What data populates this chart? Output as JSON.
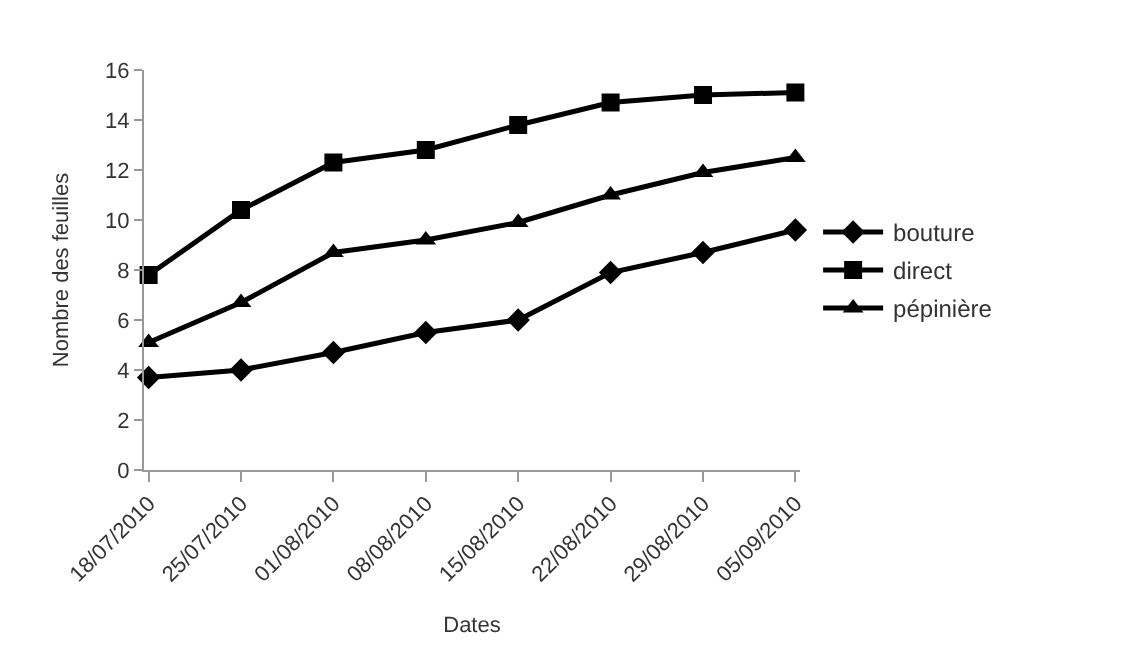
{
  "chart_data": {
    "type": "line",
    "xlabel": "Dates",
    "ylabel": "Nombre des feuilles",
    "categories": [
      "18/07/2010",
      "25/07/2010",
      "01/08/2010",
      "08/08/2010",
      "15/08/2010",
      "22/08/2010",
      "29/08/2010",
      "05/09/2010"
    ],
    "series": [
      {
        "name": "bouture",
        "color": "#000000",
        "marker": "diamond",
        "values": [
          3.7,
          4.0,
          4.7,
          5.5,
          6.0,
          7.9,
          8.7,
          9.6
        ]
      },
      {
        "name": "direct",
        "color": "#000000",
        "marker": "square",
        "values": [
          7.8,
          10.4,
          12.3,
          12.8,
          13.8,
          14.7,
          15.0,
          15.1
        ]
      },
      {
        "name": "pépinière",
        "color": "#000000",
        "marker": "triangle",
        "values": [
          5.1,
          6.7,
          8.7,
          9.2,
          9.9,
          11.0,
          11.9,
          12.5
        ]
      }
    ],
    "ylim": [
      0,
      16
    ],
    "yticks": [
      0,
      2,
      4,
      6,
      8,
      10,
      12,
      14,
      16
    ],
    "grid": false,
    "legend": "right",
    "line_style": "solid"
  }
}
